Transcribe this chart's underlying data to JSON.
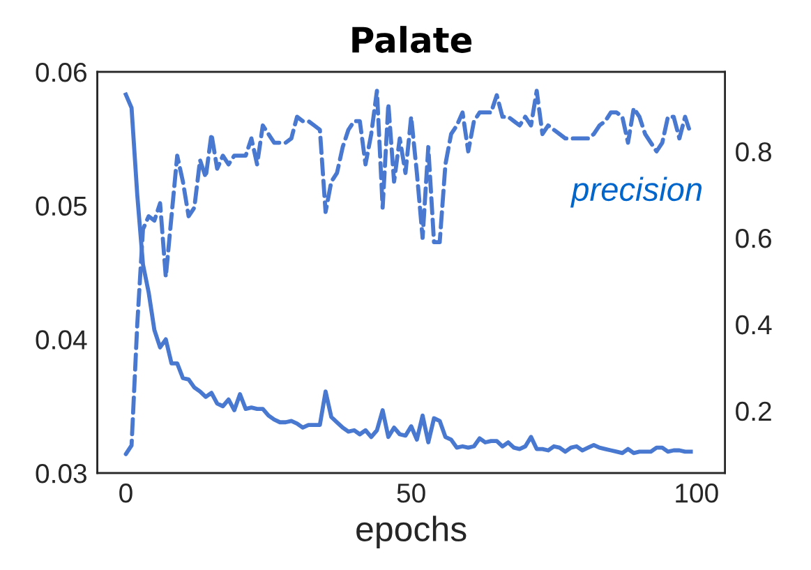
{
  "chart_data": {
    "type": "line",
    "title": "Palate",
    "xlabel": "epochs",
    "x": [
      0,
      1,
      2,
      3,
      4,
      5,
      6,
      7,
      8,
      9,
      10,
      11,
      12,
      13,
      14,
      15,
      16,
      17,
      18,
      19,
      20,
      21,
      22,
      23,
      24,
      25,
      26,
      27,
      28,
      29,
      30,
      31,
      32,
      33,
      34,
      35,
      36,
      37,
      38,
      39,
      40,
      41,
      42,
      43,
      44,
      45,
      46,
      47,
      48,
      49,
      50,
      51,
      52,
      53,
      54,
      55,
      56,
      57,
      58,
      59,
      60,
      61,
      62,
      63,
      64,
      65,
      66,
      67,
      68,
      69,
      70,
      71,
      72,
      73,
      74,
      75,
      76,
      77,
      78,
      79,
      80,
      81,
      82,
      83,
      84,
      85,
      86,
      87,
      88,
      89,
      90,
      91,
      92,
      93,
      94,
      95,
      96,
      97,
      98,
      99
    ],
    "series": [
      {
        "color": "#4878d0",
        "line_style": "solid",
        "values": [
          0.0583,
          0.0573,
          0.0508,
          0.0456,
          0.0435,
          0.0407,
          0.0394,
          0.04,
          0.0382,
          0.0382,
          0.0371,
          0.037,
          0.0364,
          0.0361,
          0.0357,
          0.036,
          0.0352,
          0.035,
          0.0355,
          0.0347,
          0.0359,
          0.0348,
          0.0349,
          0.0348,
          0.0348,
          0.0343,
          0.034,
          0.0338,
          0.0338,
          0.0339,
          0.0337,
          0.0334,
          0.0336,
          0.0336,
          0.0336,
          0.0361,
          0.0342,
          0.0338,
          0.0334,
          0.0331,
          0.0332,
          0.0329,
          0.0332,
          0.0327,
          0.0332,
          0.0347,
          0.0327,
          0.0334,
          0.0329,
          0.0328,
          0.0335,
          0.0325,
          0.0343,
          0.0323,
          0.0341,
          0.0339,
          0.0327,
          0.0325,
          0.0319,
          0.032,
          0.0319,
          0.032,
          0.0326,
          0.0323,
          0.0324,
          0.0324,
          0.032,
          0.0323,
          0.0319,
          0.0318,
          0.032,
          0.0327,
          0.0318,
          0.0318,
          0.0317,
          0.032,
          0.0319,
          0.0316,
          0.0319,
          0.032,
          0.0317,
          0.0319,
          0.0321,
          0.0319,
          0.0318,
          0.0317,
          0.0316,
          0.0315,
          0.0318,
          0.0315,
          0.0316,
          0.0316,
          0.0316,
          0.0319,
          0.0319,
          0.0316,
          0.0317,
          0.0317,
          0.0316,
          0.0316
        ]
      },
      {
        "name": "precision",
        "color": "#4878d0",
        "line_style": "dashed",
        "axis": "y2",
        "values": [
          0.1,
          0.12,
          0.4,
          0.62,
          0.65,
          0.64,
          0.68,
          0.51,
          0.65,
          0.79,
          0.73,
          0.65,
          0.67,
          0.78,
          0.74,
          0.84,
          0.76,
          0.79,
          0.77,
          0.79,
          0.79,
          0.79,
          0.83,
          0.77,
          0.86,
          0.84,
          0.82,
          0.82,
          0.82,
          0.83,
          0.88,
          0.87,
          0.87,
          0.86,
          0.85,
          0.66,
          0.73,
          0.75,
          0.81,
          0.85,
          0.87,
          0.87,
          0.77,
          0.84,
          0.94,
          0.67,
          0.91,
          0.73,
          0.83,
          0.75,
          0.88,
          0.75,
          0.6,
          0.81,
          0.59,
          0.59,
          0.77,
          0.84,
          0.86,
          0.89,
          0.8,
          0.87,
          0.89,
          0.89,
          0.89,
          0.93,
          0.88,
          0.88,
          0.87,
          0.86,
          0.88,
          0.86,
          0.94,
          0.84,
          0.86,
          0.85,
          0.84,
          0.83,
          0.83,
          0.83,
          0.83,
          0.83,
          0.84,
          0.86,
          0.87,
          0.89,
          0.89,
          0.88,
          0.82,
          0.9,
          0.88,
          0.84,
          0.82,
          0.8,
          0.82,
          0.88,
          0.88,
          0.83,
          0.88,
          0.84
        ]
      }
    ],
    "xlim": [
      -5,
      105
    ],
    "xticks": [
      0,
      50,
      100
    ],
    "ylim": [
      0.03,
      0.06
    ],
    "yticks": [
      {
        "value": 0.03,
        "label": "0.03"
      },
      {
        "value": 0.04,
        "label": "0.04"
      },
      {
        "value": 0.05,
        "label": "0.05"
      },
      {
        "value": 0.06,
        "label": "0.06"
      }
    ],
    "y2lim": [
      0.056,
      0.984
    ],
    "y2ticks": [
      0.2,
      0.4,
      0.6,
      0.8
    ],
    "grid": false,
    "legend": false,
    "marker": "none"
  }
}
